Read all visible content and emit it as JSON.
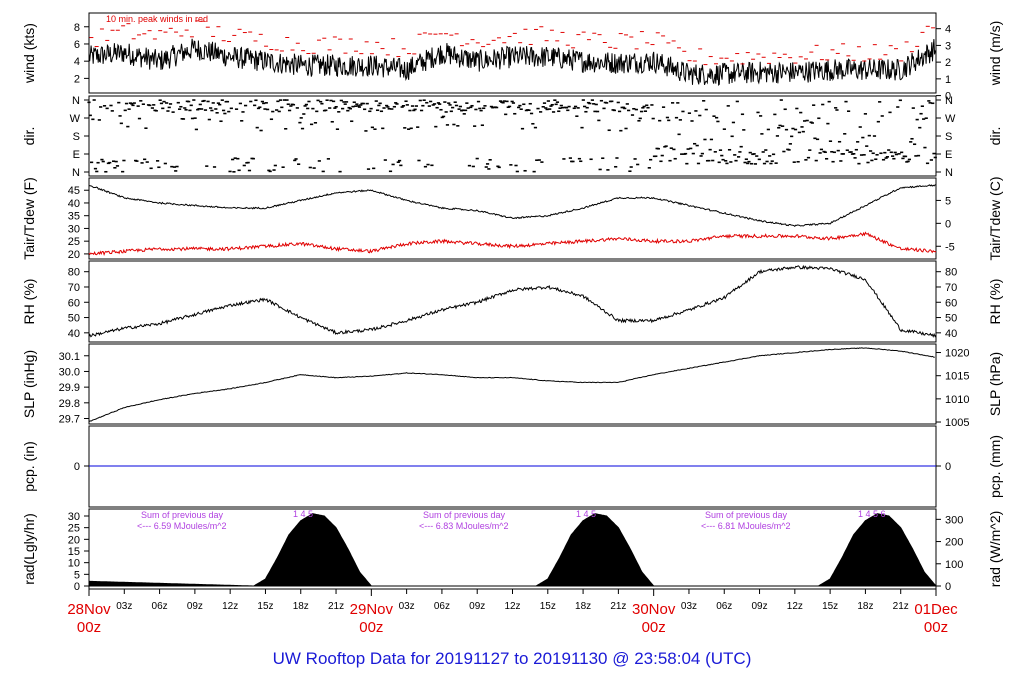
{
  "title": "UW Rooftop Data for 20191127  to  20191130 @ 23:58:04  (UTC)",
  "colors": {
    "series": "#000000",
    "peak": "#e00000",
    "dew": "#e00000",
    "precip": "#0000dd",
    "day_label": "#e00000",
    "annotation": "#b040e0",
    "title": "#1a1ad6"
  },
  "time_axis": {
    "hour_ticks": [
      "03z",
      "06z",
      "09z",
      "12z",
      "15z",
      "18z",
      "21z"
    ],
    "day_labels": [
      {
        "date": "28Nov",
        "hour": "00z"
      },
      {
        "date": "29Nov",
        "hour": "00z"
      },
      {
        "date": "30Nov",
        "hour": "00z"
      },
      {
        "date": "01Dec",
        "hour": "00z"
      }
    ]
  },
  "panels": {
    "wind": {
      "left_label": "wind (kts)",
      "right_label": "wind (m/s)",
      "note": "10 min. peak winds in red",
      "left_ticks": [
        "2",
        "4",
        "6",
        "8"
      ],
      "right_ticks": [
        "0",
        "1",
        "2",
        "3",
        "4"
      ]
    },
    "dir": {
      "left_label": "dir.",
      "right_label": "dir.",
      "ticks": [
        "N",
        "W",
        "S",
        "E",
        "N"
      ]
    },
    "temp": {
      "left_label": "Tair/Tdew (F)",
      "right_label": "Tair/Tdew (C)",
      "left_ticks": [
        "20",
        "25",
        "30",
        "35",
        "40",
        "45"
      ],
      "right_ticks": [
        "-5",
        "0",
        "5"
      ]
    },
    "rh": {
      "left_label": "RH (%)",
      "right_label": "RH (%)",
      "ticks": [
        "40",
        "50",
        "60",
        "70",
        "80"
      ]
    },
    "slp": {
      "left_label": "SLP (inHg)",
      "right_label": "SLP (hPa)",
      "left_ticks": [
        "29.7",
        "29.8",
        "29.9",
        "30.0",
        "30.1"
      ],
      "right_ticks": [
        "1005",
        "1010",
        "1015",
        "1020"
      ]
    },
    "pcp": {
      "left_label": "pcp. (in)",
      "right_label": "pcp. (mm)",
      "left_ticks": [
        "0"
      ],
      "right_ticks": [
        "0"
      ]
    },
    "rad": {
      "left_label": "rad(Lgly/hr)",
      "right_label": "rad (W/m^2)",
      "left_ticks": [
        "0",
        "5",
        "10",
        "15",
        "20",
        "25",
        "30"
      ],
      "right_ticks": [
        "0",
        "100",
        "200",
        "300"
      ],
      "annotations": [
        {
          "line1": "Sum of previous day",
          "line2": "<--- 6.59 MJoules/m^2",
          "marks": "1  4  5"
        },
        {
          "line1": "Sum of previous day",
          "line2": "<--- 6.83 MJoules/m^2",
          "marks": "1  4  5"
        },
        {
          "line1": "Sum of previous day",
          "line2": "<--- 6.81 MJoules/m^2",
          "marks": "1  4  5  6"
        }
      ]
    }
  },
  "chart_data": {
    "type": "line",
    "x_unit": "hours from 28Nov 00z",
    "x_range": [
      0,
      72
    ],
    "series": [
      {
        "name": "wind (kts)",
        "panel": "wind",
        "x": [
          0,
          3,
          6,
          9,
          12,
          15,
          18,
          21,
          24,
          27,
          30,
          33,
          36,
          39,
          42,
          45,
          48,
          51,
          54,
          57,
          60,
          63,
          66,
          69,
          72
        ],
        "values": [
          4.5,
          5,
          4,
          5.5,
          4.5,
          4,
          3.5,
          3.5,
          3.5,
          3,
          5,
          4,
          4.5,
          4.5,
          4,
          3.8,
          4,
          2.5,
          2.5,
          2.7,
          2.7,
          3,
          3,
          3,
          5.5
        ]
      },
      {
        "name": "10 min. peak winds",
        "panel": "wind",
        "x": [
          0,
          3,
          6,
          9,
          12,
          15,
          18,
          21,
          24,
          27,
          30,
          33,
          36,
          39,
          42,
          45,
          48,
          51,
          54,
          57,
          60,
          63,
          66,
          69,
          72
        ],
        "values": [
          6,
          7,
          6.5,
          7.5,
          6.5,
          6,
          5.5,
          5.5,
          5.5,
          5,
          7,
          6,
          6.5,
          6.5,
          6,
          5.8,
          6,
          4,
          4,
          4.2,
          4.2,
          4.5,
          4.5,
          4.5,
          8
        ]
      },
      {
        "name": "Tair (F)",
        "panel": "temp",
        "x": [
          0,
          3,
          6,
          9,
          12,
          15,
          18,
          21,
          24,
          27,
          30,
          33,
          36,
          39,
          42,
          45,
          48,
          51,
          54,
          57,
          60,
          63,
          66,
          69,
          72
        ],
        "values": [
          47,
          42,
          40,
          39,
          38,
          38,
          41,
          44,
          45,
          41,
          38,
          37,
          34,
          35,
          38,
          42,
          42,
          39,
          36,
          33,
          31,
          32,
          39,
          46,
          47
        ]
      },
      {
        "name": "Tdew (F)",
        "panel": "temp",
        "x": [
          0,
          3,
          6,
          9,
          12,
          15,
          18,
          21,
          24,
          27,
          30,
          33,
          36,
          39,
          42,
          45,
          48,
          51,
          54,
          57,
          60,
          63,
          66,
          69,
          72
        ],
        "values": [
          20,
          21,
          22,
          22,
          22,
          23,
          24,
          22,
          21,
          24,
          25,
          24,
          23,
          24,
          25,
          26,
          25,
          25,
          27,
          27,
          27,
          26,
          28,
          22,
          21
        ]
      },
      {
        "name": "RH (%)",
        "panel": "rh",
        "x": [
          0,
          3,
          6,
          9,
          12,
          15,
          18,
          21,
          24,
          27,
          30,
          33,
          36,
          39,
          42,
          45,
          48,
          51,
          54,
          57,
          60,
          63,
          66,
          69,
          72
        ],
        "values": [
          38,
          43,
          46,
          52,
          58,
          62,
          50,
          40,
          42,
          48,
          55,
          60,
          68,
          70,
          64,
          48,
          48,
          55,
          63,
          80,
          83,
          82,
          75,
          42,
          38
        ]
      },
      {
        "name": "SLP (inHg)",
        "panel": "slp",
        "x": [
          0,
          3,
          6,
          9,
          12,
          15,
          18,
          21,
          24,
          27,
          30,
          33,
          36,
          39,
          42,
          45,
          48,
          51,
          54,
          57,
          60,
          63,
          66,
          69,
          72
        ],
        "values": [
          29.68,
          29.77,
          29.82,
          29.86,
          29.89,
          29.93,
          29.98,
          29.96,
          29.97,
          29.99,
          29.98,
          29.96,
          29.96,
          29.94,
          29.93,
          29.93,
          29.98,
          30.02,
          30.06,
          30.1,
          30.12,
          30.14,
          30.15,
          30.13,
          30.09
        ]
      },
      {
        "name": "pcp. (in)",
        "panel": "pcp",
        "x": [
          0,
          72
        ],
        "values": [
          0,
          0
        ]
      },
      {
        "name": "rad (Lgly/hr)",
        "panel": "rad",
        "x": [
          0,
          14,
          15,
          16,
          17,
          18,
          19,
          20,
          21,
          22,
          23,
          24,
          38,
          39,
          40,
          41,
          42,
          43,
          44,
          45,
          46,
          47,
          48,
          62,
          63,
          64,
          65,
          66,
          67,
          68,
          69,
          70,
          71,
          72
        ],
        "values": [
          2,
          0,
          3,
          12,
          22,
          28,
          31,
          30,
          25,
          16,
          6,
          0,
          0,
          3,
          12,
          22,
          28,
          31,
          30,
          25,
          16,
          6,
          0,
          0,
          3,
          12,
          22,
          28,
          31,
          30,
          25,
          16,
          6,
          0
        ]
      }
    ],
    "direction_scale": [
      "N",
      "W",
      "S",
      "E",
      "N"
    ]
  }
}
